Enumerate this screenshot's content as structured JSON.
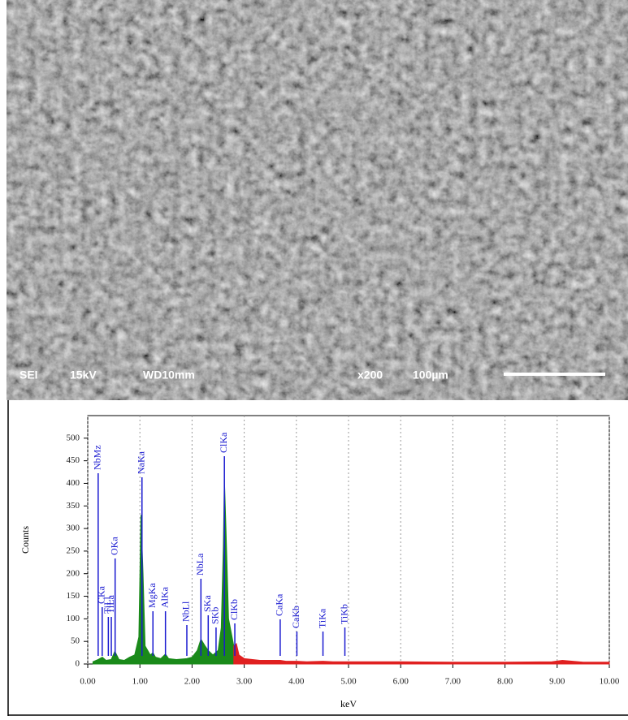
{
  "image": {
    "labels": [
      "SEI",
      "15kV",
      "WD10mm",
      "x200",
      "100µm"
    ]
  },
  "chart_data": {
    "type": "area",
    "xlabel": "keV",
    "ylabel": "Counts",
    "xlim": [
      0,
      10
    ],
    "ylim": [
      0,
      550
    ],
    "xticks": [
      {
        "value": 0,
        "label": "0.00"
      },
      {
        "value": 1,
        "label": "1.00"
      },
      {
        "value": 2,
        "label": "2.00"
      },
      {
        "value": 3,
        "label": "3.00"
      },
      {
        "value": 4,
        "label": "4.00"
      },
      {
        "value": 5,
        "label": "5.00"
      },
      {
        "value": 6,
        "label": "6.00"
      },
      {
        "value": 7,
        "label": "7.00"
      },
      {
        "value": 8,
        "label": "8.00"
      },
      {
        "value": 9,
        "label": "9.00"
      },
      {
        "value": 10,
        "label": "10.00"
      }
    ],
    "yticks": [
      0,
      50,
      100,
      150,
      200,
      250,
      300,
      350,
      400,
      450,
      500
    ],
    "grid": true,
    "x": [
      0.1,
      0.2,
      0.28,
      0.35,
      0.45,
      0.52,
      0.6,
      0.7,
      0.8,
      0.9,
      0.98,
      1.02,
      1.06,
      1.1,
      1.2,
      1.25,
      1.3,
      1.4,
      1.49,
      1.55,
      1.7,
      1.9,
      2.0,
      2.1,
      2.17,
      2.25,
      2.31,
      2.4,
      2.5,
      2.56,
      2.6,
      2.62,
      2.65,
      2.7,
      2.8,
      2.85,
      2.9,
      3.0,
      3.3,
      3.69,
      3.8,
      4.01,
      4.2,
      4.51,
      4.7,
      4.93,
      5.2,
      6,
      7,
      8,
      8.9,
      9.1,
      9.5,
      10
    ],
    "series": [
      {
        "color": "#1a8a1a",
        "values": [
          5,
          10,
          15,
          8,
          10,
          28,
          10,
          8,
          15,
          20,
          60,
          330,
          200,
          40,
          20,
          25,
          15,
          12,
          22,
          12,
          10,
          12,
          15,
          30,
          55,
          40,
          30,
          20,
          30,
          80,
          260,
          410,
          300,
          100,
          40,
          null,
          null,
          null,
          null,
          null,
          null,
          null,
          null,
          null,
          null,
          null,
          null,
          null,
          null,
          null,
          null,
          null,
          null,
          null
        ]
      },
      {
        "color": "#e02020",
        "values": [
          null,
          null,
          null,
          null,
          null,
          null,
          null,
          null,
          null,
          null,
          null,
          null,
          null,
          null,
          null,
          null,
          null,
          null,
          null,
          null,
          null,
          null,
          null,
          null,
          null,
          null,
          null,
          null,
          null,
          null,
          null,
          null,
          null,
          null,
          40,
          45,
          20,
          12,
          8,
          8,
          6,
          6,
          5,
          6,
          5,
          5,
          5,
          5,
          4,
          4,
          5,
          8,
          4,
          4
        ]
      }
    ],
    "annotations": [
      {
        "label": "NbMz",
        "x": 0.2
      },
      {
        "label": "CKa",
        "x": 0.277
      },
      {
        "label": "TiLl",
        "x": 0.395
      },
      {
        "label": "TiLa",
        "x": 0.452
      },
      {
        "label": "OKa",
        "x": 0.525
      },
      {
        "label": "NaKa",
        "x": 1.04
      },
      {
        "label": "MgKa",
        "x": 1.25
      },
      {
        "label": "AlKa",
        "x": 1.49
      },
      {
        "label": "NbLl",
        "x": 1.9
      },
      {
        "label": "NbLa",
        "x": 2.17
      },
      {
        "label": "SKa",
        "x": 2.31
      },
      {
        "label": "SKb",
        "x": 2.46
      },
      {
        "label": "ClKa",
        "x": 2.62
      },
      {
        "label": "ClKb",
        "x": 2.82
      },
      {
        "label": "CaKa",
        "x": 3.69
      },
      {
        "label": "CaKb",
        "x": 4.01
      },
      {
        "label": "TiKa",
        "x": 4.51
      },
      {
        "label": "TiKb",
        "x": 4.93
      }
    ]
  }
}
